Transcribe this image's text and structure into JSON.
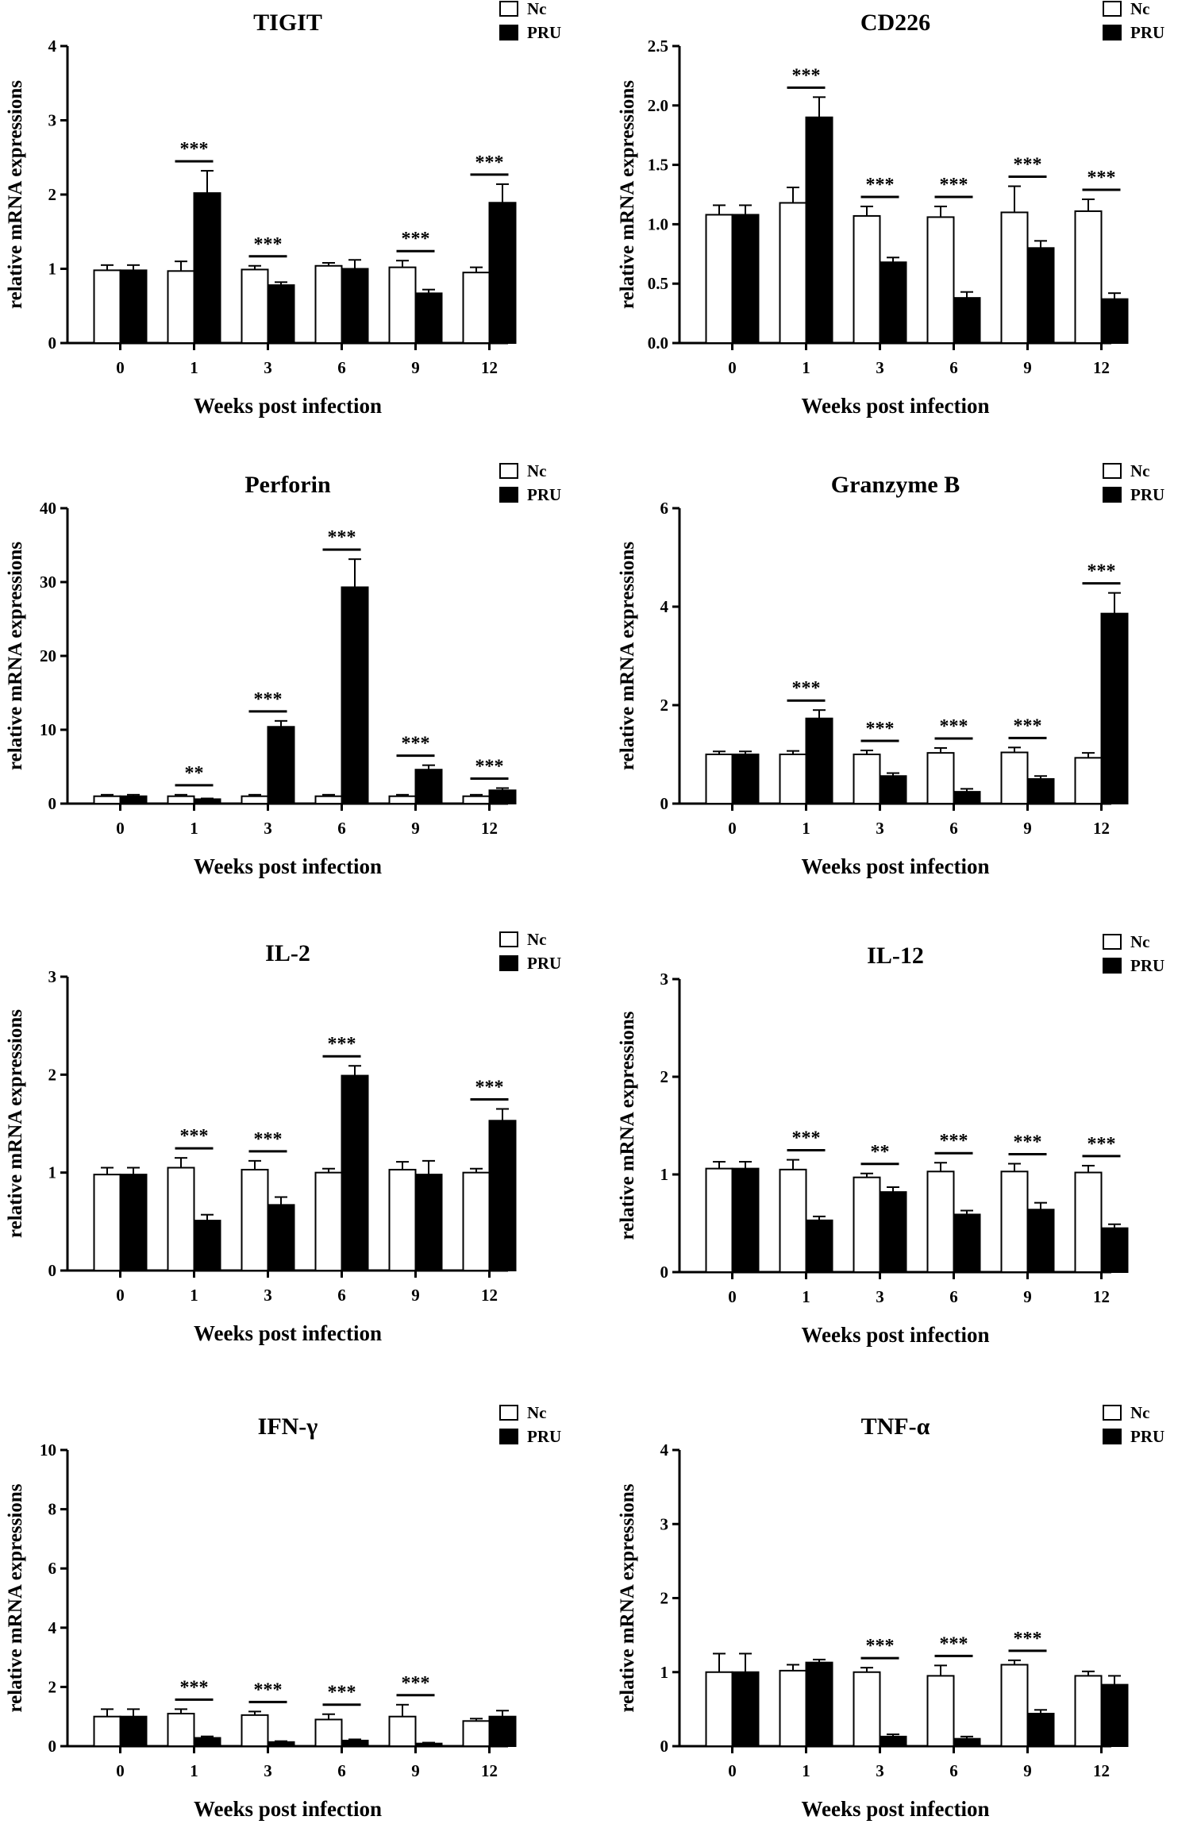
{
  "chart_data": [
    {
      "type": "bar",
      "title": "TIGIT",
      "xlabel": "Weeks post infection",
      "ylabel": "relative  mRNA expressions",
      "categories": [
        "0",
        "1",
        "3",
        "6",
        "9",
        "12"
      ],
      "ylim": [
        0,
        4
      ],
      "yticks": [
        "0",
        "1",
        "2",
        "3",
        "4"
      ],
      "series": [
        {
          "name": "Nc",
          "values": [
            0.98,
            0.97,
            0.99,
            1.04,
            1.02,
            0.95
          ],
          "errors": [
            0.07,
            0.13,
            0.05,
            0.04,
            0.09,
            0.07
          ]
        },
        {
          "name": "PRU",
          "values": [
            0.98,
            2.02,
            0.78,
            1.0,
            0.67,
            1.89
          ],
          "errors": [
            0.07,
            0.3,
            0.04,
            0.12,
            0.05,
            0.25
          ]
        }
      ],
      "significance": [
        "",
        "***",
        "***",
        "",
        "***",
        "***"
      ]
    },
    {
      "type": "bar",
      "title": "CD226",
      "xlabel": "Weeks post infection",
      "ylabel": "relative  mRNA expressions",
      "categories": [
        "0",
        "1",
        "3",
        "6",
        "9",
        "12"
      ],
      "ylim": [
        0,
        2.5
      ],
      "yticks": [
        "0.0",
        "0.5",
        "1.0",
        "1.5",
        "2.0",
        "2.5"
      ],
      "series": [
        {
          "name": "Nc",
          "values": [
            1.08,
            1.18,
            1.07,
            1.06,
            1.1,
            1.11
          ],
          "errors": [
            0.08,
            0.13,
            0.08,
            0.09,
            0.22,
            0.1
          ]
        },
        {
          "name": "PRU",
          "values": [
            1.08,
            1.9,
            0.68,
            0.38,
            0.8,
            0.37
          ],
          "errors": [
            0.08,
            0.17,
            0.04,
            0.05,
            0.06,
            0.05
          ]
        }
      ],
      "significance": [
        "",
        "***",
        "***",
        "***",
        "***",
        "***"
      ]
    },
    {
      "type": "bar",
      "title": "Perforin",
      "xlabel": "Weeks post infection",
      "ylabel": "relative  mRNA expressions",
      "categories": [
        "0",
        "1",
        "3",
        "6",
        "9",
        "12"
      ],
      "ylim": [
        0,
        40
      ],
      "yticks": [
        "0",
        "10",
        "20",
        "30",
        "40"
      ],
      "series": [
        {
          "name": "Nc",
          "values": [
            1.0,
            1.0,
            1.0,
            1.0,
            1.0,
            1.0
          ],
          "errors": [
            0.2,
            0.2,
            0.2,
            0.2,
            0.2,
            0.2
          ]
        },
        {
          "name": "PRU",
          "values": [
            1.0,
            0.6,
            10.4,
            29.3,
            4.6,
            1.8
          ],
          "errors": [
            0.2,
            0.1,
            0.8,
            3.8,
            0.6,
            0.3
          ]
        }
      ],
      "significance": [
        "",
        "**",
        "***",
        "***",
        "***",
        "***"
      ]
    },
    {
      "type": "bar",
      "title": "Granzyme B",
      "xlabel": "Weeks post infection",
      "ylabel": "relative  mRNA expressions",
      "categories": [
        "0",
        "1",
        "3",
        "6",
        "9",
        "12"
      ],
      "ylim": [
        0,
        6
      ],
      "yticks": [
        "0",
        "2",
        "4",
        "6"
      ],
      "series": [
        {
          "name": "Nc",
          "values": [
            1.0,
            1.0,
            1.0,
            1.03,
            1.04,
            0.93
          ],
          "errors": [
            0.06,
            0.07,
            0.08,
            0.1,
            0.1,
            0.1
          ]
        },
        {
          "name": "PRU",
          "values": [
            1.0,
            1.73,
            0.56,
            0.24,
            0.5,
            3.86
          ],
          "errors": [
            0.06,
            0.17,
            0.06,
            0.06,
            0.06,
            0.42
          ]
        }
      ],
      "significance": [
        "",
        "***",
        "***",
        "***",
        "***",
        "***"
      ]
    },
    {
      "type": "bar",
      "title": "IL-2",
      "xlabel": "Weeks post infection",
      "ylabel": "relative  mRNA expressions",
      "categories": [
        "0",
        "1",
        "3",
        "6",
        "9",
        "12"
      ],
      "ylim": [
        0,
        3
      ],
      "yticks": [
        "0",
        "1",
        "2",
        "3"
      ],
      "series": [
        {
          "name": "Nc",
          "values": [
            0.98,
            1.05,
            1.03,
            1.0,
            1.03,
            1.0
          ],
          "errors": [
            0.07,
            0.1,
            0.09,
            0.04,
            0.08,
            0.04
          ]
        },
        {
          "name": "PRU",
          "values": [
            0.98,
            0.51,
            0.67,
            1.99,
            0.98,
            1.53
          ],
          "errors": [
            0.07,
            0.06,
            0.08,
            0.1,
            0.14,
            0.12
          ]
        }
      ],
      "significance": [
        "",
        "***",
        "***",
        "***",
        "",
        "***"
      ]
    },
    {
      "type": "bar",
      "title": "IL-12",
      "xlabel": "Weeks post infection",
      "ylabel": "relative  mRNA expressions",
      "categories": [
        "0",
        "1",
        "3",
        "6",
        "9",
        "12"
      ],
      "ylim": [
        0,
        3
      ],
      "yticks": [
        "0",
        "1",
        "2",
        "3"
      ],
      "series": [
        {
          "name": "Nc",
          "values": [
            1.06,
            1.05,
            0.97,
            1.03,
            1.03,
            1.02
          ],
          "errors": [
            0.07,
            0.1,
            0.04,
            0.09,
            0.08,
            0.07
          ]
        },
        {
          "name": "PRU",
          "values": [
            1.06,
            0.53,
            0.82,
            0.59,
            0.64,
            0.45
          ],
          "errors": [
            0.07,
            0.04,
            0.05,
            0.04,
            0.07,
            0.04
          ]
        }
      ],
      "significance": [
        "",
        "***",
        "**",
        "***",
        "***",
        "***"
      ]
    },
    {
      "type": "bar",
      "title": "IFN-γ",
      "xlabel": "Weeks post infection",
      "ylabel": "relative  mRNA expressions",
      "categories": [
        "0",
        "1",
        "3",
        "6",
        "9",
        "12"
      ],
      "ylim": [
        0,
        10
      ],
      "yticks": [
        "0",
        "2",
        "4",
        "6",
        "8",
        "10"
      ],
      "series": [
        {
          "name": "Nc",
          "values": [
            1.0,
            1.1,
            1.05,
            0.9,
            1.0,
            0.85
          ],
          "errors": [
            0.25,
            0.15,
            0.12,
            0.18,
            0.4,
            0.08
          ]
        },
        {
          "name": "PRU",
          "values": [
            1.0,
            0.28,
            0.14,
            0.19,
            0.09,
            1.0
          ],
          "errors": [
            0.25,
            0.05,
            0.03,
            0.04,
            0.03,
            0.2
          ]
        }
      ],
      "significance": [
        "",
        "***",
        "***",
        "***",
        "***",
        ""
      ]
    },
    {
      "type": "bar",
      "title": "TNF-α",
      "xlabel": "Weeks post infection",
      "ylabel": "relative  mRNA expressions",
      "categories": [
        "0",
        "1",
        "3",
        "6",
        "9",
        "12"
      ],
      "ylim": [
        0,
        4
      ],
      "yticks": [
        "0",
        "1",
        "2",
        "3",
        "4"
      ],
      "series": [
        {
          "name": "Nc",
          "values": [
            1.0,
            1.02,
            1.0,
            0.95,
            1.1,
            0.95
          ],
          "errors": [
            0.25,
            0.08,
            0.06,
            0.14,
            0.06,
            0.06
          ]
        },
        {
          "name": "PRU",
          "values": [
            1.0,
            1.13,
            0.13,
            0.1,
            0.44,
            0.83
          ],
          "errors": [
            0.25,
            0.04,
            0.03,
            0.03,
            0.05,
            0.12
          ]
        }
      ],
      "significance": [
        "",
        "",
        "***",
        "***",
        "***",
        ""
      ]
    }
  ]
}
